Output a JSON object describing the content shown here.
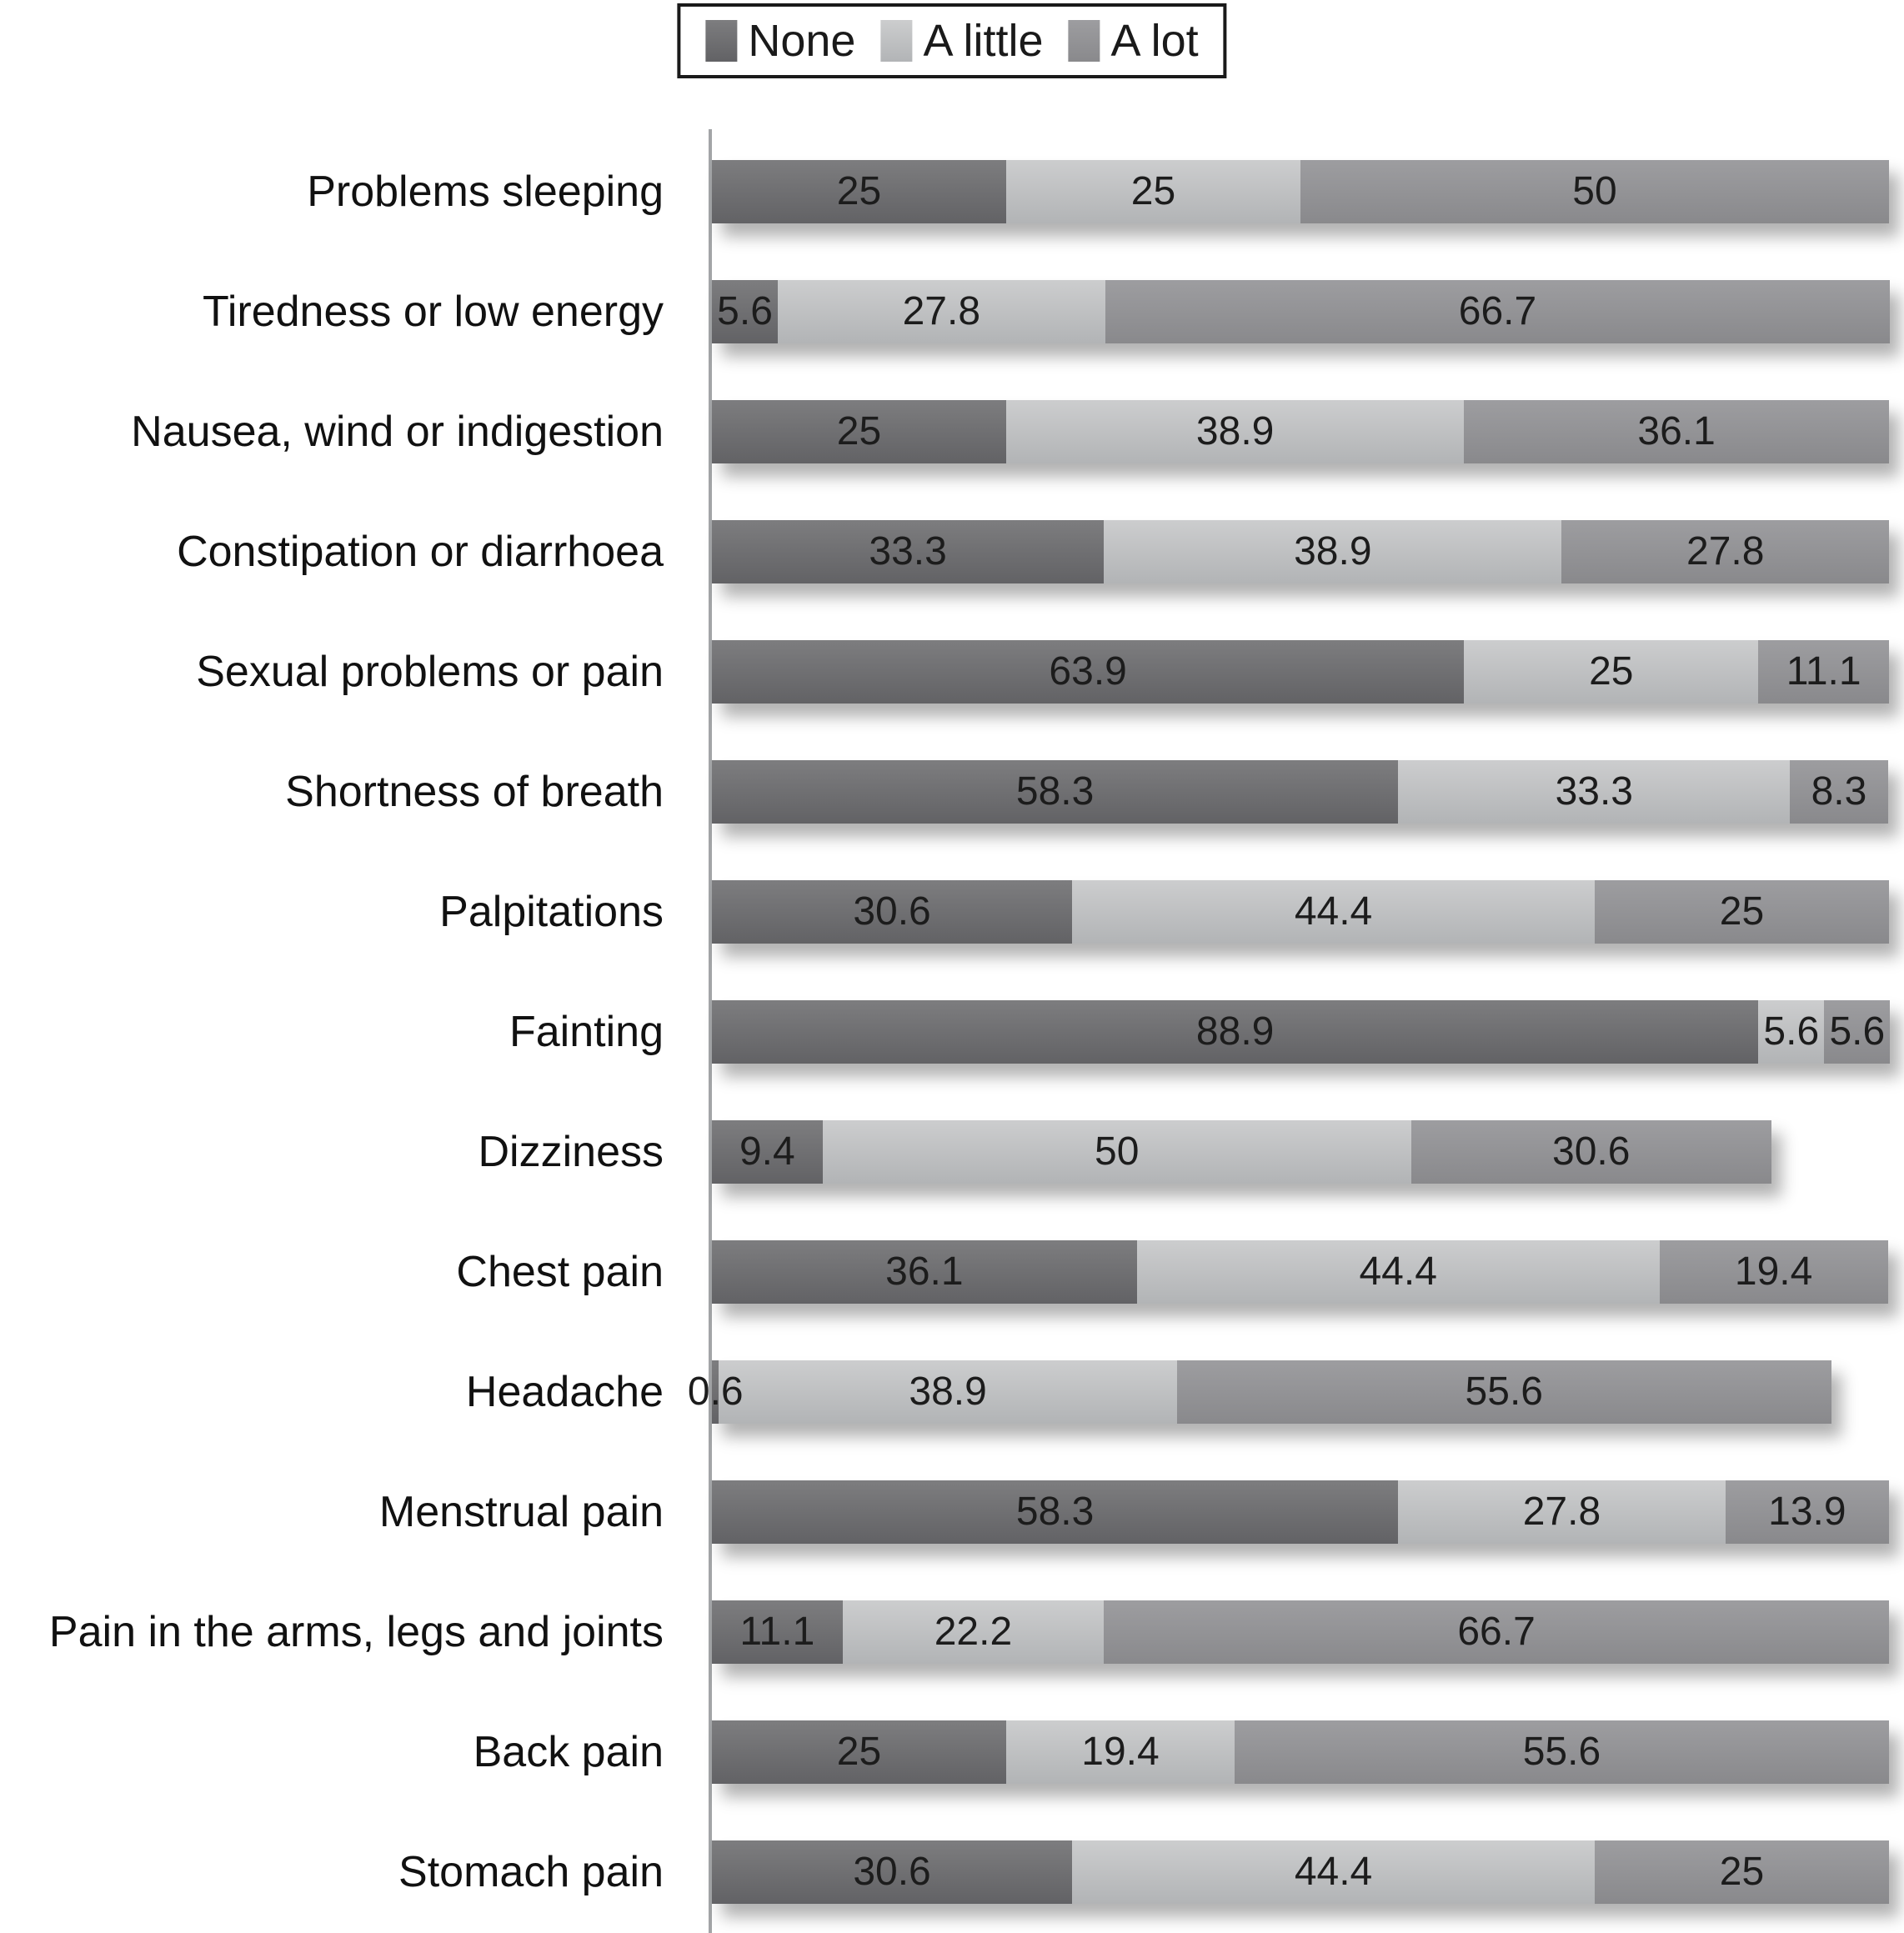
{
  "chart_data": {
    "type": "bar",
    "orientation": "horizontal",
    "stacked": true,
    "unit": "percent",
    "xlim": [
      0,
      100
    ],
    "grid": false,
    "legend_position": "top",
    "legend": {
      "items": [
        "None",
        "A little",
        "A lot"
      ]
    },
    "categories": [
      "Problems sleeping",
      "Tiredness or low energy",
      "Nausea, wind or indigestion",
      "Constipation or diarrhoea",
      "Sexual problems or pain",
      "Shortness of breath",
      "Palpitations",
      "Fainting",
      "Dizziness",
      "Chest pain",
      "Headache",
      "Menstrual pain",
      "Pain in the arms, legs and joints",
      "Back pain",
      "Stomach pain"
    ],
    "series": [
      {
        "name": "None",
        "color": "#6b6b6e",
        "color_top": "#7d7d7f",
        "color_bottom": "#626265",
        "values": [
          25,
          5.6,
          25,
          33.3,
          63.9,
          58.3,
          30.6,
          88.9,
          9.4,
          36.1,
          0.6,
          58.3,
          11.1,
          25,
          30.6
        ],
        "labels": [
          "25",
          "5.6",
          "25",
          "33.3",
          "63.9",
          "58.3",
          "30.6",
          "88.9",
          "9.4",
          "36.1",
          "0.6",
          "58.3",
          "11.1",
          "25",
          "30.6"
        ]
      },
      {
        "name": "A little",
        "color": "#c2c4c5",
        "color_top": "#cccdce",
        "color_bottom": "#b2b4b6",
        "values": [
          25,
          27.8,
          38.9,
          38.9,
          25,
          33.3,
          44.4,
          5.6,
          50,
          44.4,
          38.9,
          27.8,
          22.2,
          19.4,
          44.4
        ],
        "labels": [
          "25",
          "27.8",
          "38.9",
          "38.9",
          "25",
          "33.3",
          "44.4",
          "5.6",
          "50",
          "44.4",
          "38.9",
          "27.8",
          "22.2",
          "19.4",
          "44.4"
        ]
      },
      {
        "name": "A lot",
        "color": "#929295",
        "color_top": "#9d9da0",
        "color_bottom": "#89898c",
        "values": [
          50,
          66.7,
          36.1,
          27.8,
          11.1,
          8.3,
          25,
          5.6,
          30.6,
          19.4,
          55.6,
          13.9,
          66.7,
          55.6,
          25
        ],
        "labels": [
          "50",
          "66.7",
          "36.1",
          "27.8",
          "11.1",
          "8.3",
          "25",
          "5.6",
          "30.6",
          "19.4",
          "55.6",
          "13.9",
          "66.7",
          "55.6",
          "25"
        ]
      }
    ],
    "value_label_color": "#1c1c1c",
    "axis_line_color": "#a3a5a7"
  }
}
